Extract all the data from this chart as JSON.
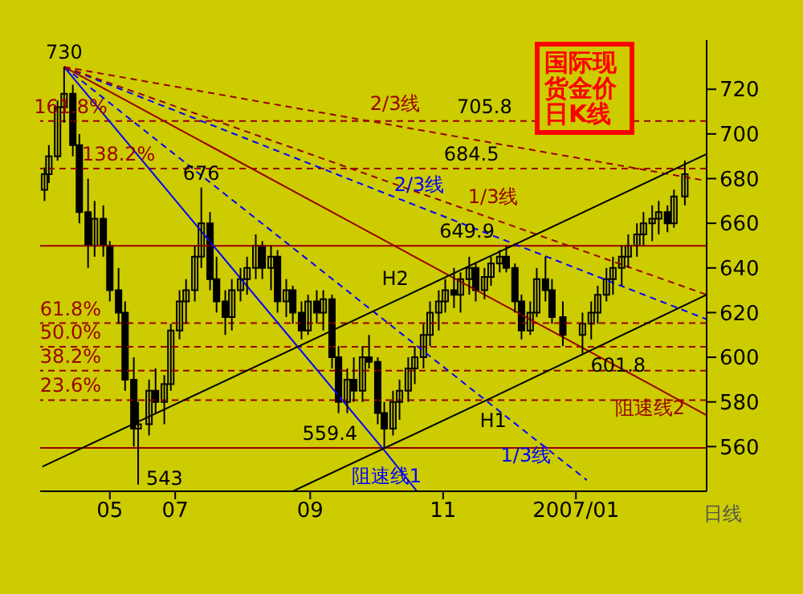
{
  "chart_data": {
    "type": "candlestick",
    "title": "国际现货金价日K线",
    "x": [
      "2006-05-02",
      "2006-05-04",
      "2006-05-08",
      "2006-05-11",
      "2006-05-15",
      "2006-05-18",
      "2006-05-22",
      "2006-05-25",
      "2006-05-29",
      "2006-06-01",
      "2006-06-05",
      "2006-06-08",
      "2006-06-12",
      "2006-06-14",
      "2006-06-19",
      "2006-06-22",
      "2006-06-26",
      "2006-06-29",
      "2006-07-03",
      "2006-07-06",
      "2006-07-10",
      "2006-07-13",
      "2006-07-17",
      "2006-07-20",
      "2006-07-24",
      "2006-07-27",
      "2006-07-31",
      "2006-08-03",
      "2006-08-07",
      "2006-08-10",
      "2006-08-14",
      "2006-08-17",
      "2006-08-21",
      "2006-08-24",
      "2006-08-28",
      "2006-08-31",
      "2006-09-04",
      "2006-09-07",
      "2006-09-11",
      "2006-09-14",
      "2006-09-18",
      "2006-09-21",
      "2006-09-25",
      "2006-09-28",
      "2006-10-02",
      "2006-10-05",
      "2006-10-09",
      "2006-10-12",
      "2006-10-16",
      "2006-10-19",
      "2006-10-23",
      "2006-10-26",
      "2006-10-30",
      "2006-11-02",
      "2006-11-06",
      "2006-11-09",
      "2006-11-13",
      "2006-11-16",
      "2006-11-20",
      "2006-11-23",
      "2006-11-27",
      "2006-11-30",
      "2006-12-04",
      "2006-12-07",
      "2006-12-11",
      "2006-12-14",
      "2006-12-18",
      "2006-12-21",
      "2006-12-26",
      "2007-01-04",
      "2007-01-08",
      "2007-01-11",
      "2007-01-15",
      "2007-01-18",
      "2007-01-22",
      "2007-01-25",
      "2007-01-29",
      "2007-02-01",
      "2007-02-05",
      "2007-02-08",
      "2007-02-12",
      "2007-02-15",
      "2007-02-20"
    ],
    "ohlc": [
      [
        675,
        685,
        670,
        682
      ],
      [
        682,
        695,
        678,
        690
      ],
      [
        690,
        715,
        688,
        712
      ],
      [
        712,
        730,
        705,
        718
      ],
      [
        718,
        722,
        690,
        695
      ],
      [
        695,
        700,
        660,
        665
      ],
      [
        665,
        680,
        640,
        650
      ],
      [
        650,
        670,
        645,
        662
      ],
      [
        662,
        668,
        645,
        650
      ],
      [
        650,
        652,
        625,
        630
      ],
      [
        630,
        640,
        615,
        620
      ],
      [
        620,
        625,
        585,
        590
      ],
      [
        590,
        600,
        560,
        568
      ],
      [
        568,
        580,
        543,
        570
      ],
      [
        570,
        590,
        565,
        585
      ],
      [
        585,
        595,
        575,
        580
      ],
      [
        580,
        592,
        570,
        588
      ],
      [
        588,
        615,
        585,
        612
      ],
      [
        612,
        630,
        608,
        625
      ],
      [
        625,
        635,
        615,
        630
      ],
      [
        630,
        650,
        625,
        645
      ],
      [
        645,
        676,
        640,
        660
      ],
      [
        660,
        665,
        630,
        635
      ],
      [
        635,
        645,
        620,
        625
      ],
      [
        625,
        630,
        610,
        618
      ],
      [
        618,
        635,
        612,
        630
      ],
      [
        630,
        640,
        625,
        635
      ],
      [
        635,
        645,
        628,
        640
      ],
      [
        640,
        655,
        635,
        650
      ],
      [
        650,
        652,
        635,
        640
      ],
      [
        640,
        650,
        630,
        645
      ],
      [
        645,
        648,
        620,
        625
      ],
      [
        625,
        635,
        618,
        630
      ],
      [
        630,
        632,
        615,
        620
      ],
      [
        620,
        625,
        608,
        612
      ],
      [
        612,
        628,
        610,
        625
      ],
      [
        625,
        630,
        615,
        620
      ],
      [
        620,
        630,
        612,
        626
      ],
      [
        626,
        628,
        595,
        600
      ],
      [
        600,
        605,
        575,
        580
      ],
      [
        580,
        595,
        575,
        590
      ],
      [
        590,
        600,
        580,
        585
      ],
      [
        585,
        605,
        580,
        600
      ],
      [
        600,
        610,
        595,
        598
      ],
      [
        598,
        600,
        570,
        575
      ],
      [
        575,
        580,
        559.4,
        568
      ],
      [
        568,
        585,
        565,
        580
      ],
      [
        580,
        590,
        572,
        585
      ],
      [
        585,
        600,
        580,
        595
      ],
      [
        595,
        605,
        588,
        600
      ],
      [
        600,
        615,
        595,
        610
      ],
      [
        610,
        625,
        605,
        620
      ],
      [
        620,
        630,
        612,
        625
      ],
      [
        625,
        635,
        620,
        630
      ],
      [
        630,
        640,
        622,
        628
      ],
      [
        628,
        638,
        620,
        635
      ],
      [
        635,
        645,
        628,
        640
      ],
      [
        640,
        642,
        625,
        630
      ],
      [
        630,
        640,
        626,
        636
      ],
      [
        636,
        645,
        632,
        642
      ],
      [
        642,
        648,
        638,
        645
      ],
      [
        645,
        649.9,
        638,
        640
      ],
      [
        640,
        642,
        620,
        625
      ],
      [
        625,
        628,
        608,
        612
      ],
      [
        612,
        625,
        610,
        620
      ],
      [
        620,
        640,
        618,
        635
      ],
      [
        635,
        645,
        625,
        630
      ],
      [
        630,
        635,
        615,
        618
      ],
      [
        618,
        625,
        605,
        610
      ],
      [
        610,
        620,
        601.8,
        615
      ],
      [
        615,
        625,
        608,
        620
      ],
      [
        620,
        632,
        615,
        628
      ],
      [
        628,
        640,
        625,
        635
      ],
      [
        635,
        645,
        628,
        640
      ],
      [
        640,
        650,
        632,
        645
      ],
      [
        645,
        655,
        640,
        650
      ],
      [
        650,
        660,
        645,
        655
      ],
      [
        655,
        665,
        650,
        660
      ],
      [
        660,
        668,
        652,
        662
      ],
      [
        662,
        670,
        655,
        665
      ],
      [
        665,
        668,
        656,
        660
      ],
      [
        660,
        675,
        658,
        672
      ],
      [
        672,
        688,
        668,
        682
      ]
    ],
    "color": "#000000",
    "series": [
      {
        "type": "line",
        "name": "阻速线1",
        "color": "#0000ff",
        "line_style": "solid",
        "x": [
          "2006-05-11",
          "2006-10-06",
          "2006-10-20"
        ],
        "values": [
          730,
          557.1,
          540
        ]
      },
      {
        "type": "line",
        "name": "1/3线",
        "color": "#0000ff",
        "line_style": "dashed",
        "x": [
          "2006-05-11",
          "2006-12-09",
          "2007-01-06"
        ],
        "values": [
          730,
          566.5,
          545
        ]
      },
      {
        "type": "line",
        "name": "2/3线",
        "color": "#0000ff",
        "line_style": "dashed",
        "x": [
          "2006-05-11",
          "2006-10-21",
          "2007-03-02"
        ],
        "values": [
          730,
          667.4,
          617
        ]
      },
      {
        "type": "line",
        "name": "阻速线2",
        "color": "#990000",
        "line_style": "solid",
        "x": [
          "2006-05-11",
          "2007-02-04",
          "2007-03-02"
        ],
        "values": [
          730,
          587.9,
          574
        ]
      },
      {
        "type": "line",
        "name": "1/3线",
        "color": "#990000",
        "line_style": "dashed",
        "x": [
          "2006-05-11",
          "2006-11-24",
          "2007-03-02"
        ],
        "values": [
          730,
          661.9,
          628
        ]
      },
      {
        "type": "line",
        "name": "2/3线",
        "color": "#990000",
        "line_style": "dashed",
        "x": [
          "2006-05-11",
          "2006-10-10",
          "2007-03-02"
        ],
        "values": [
          730,
          703.7,
          679
        ]
      },
      {
        "type": "line",
        "name": "H2",
        "color": "#000000",
        "line_style": "solid",
        "x": [
          "2006-05-01",
          "2006-10-10",
          "2007-03-02"
        ],
        "values": [
          551,
          625.2,
          691
        ]
      },
      {
        "type": "line",
        "name": "H1",
        "color": "#000000",
        "line_style": "solid",
        "x": [
          "2006-08-24",
          "2006-11-24",
          "2007-03-02"
        ],
        "values": [
          540,
          582.2,
          628
        ]
      }
    ],
    "ref_lines": [
      {
        "axis": "y",
        "value": 705.8,
        "color": "#990000",
        "line_style": "dashed"
      },
      {
        "axis": "y",
        "value": 684.5,
        "color": "#990000",
        "line_style": "dashed"
      },
      {
        "axis": "y",
        "value": 649.9,
        "color": "#990000",
        "line_style": "solid"
      },
      {
        "axis": "y",
        "value": 615.3,
        "color": "#990000",
        "line_style": "dashed"
      },
      {
        "axis": "y",
        "value": 604.7,
        "color": "#990000",
        "line_style": "dashed"
      },
      {
        "axis": "y",
        "value": 594,
        "color": "#990000",
        "line_style": "dashed"
      },
      {
        "axis": "y",
        "value": 580.8,
        "color": "#990000",
        "line_style": "dashed"
      },
      {
        "axis": "y",
        "value": 559.4,
        "color": "#990000",
        "line_style": "solid"
      }
    ],
    "annotations": [
      {
        "text": "730",
        "x": "2006-05-11",
        "y": 730
      },
      {
        "text": "543",
        "x": "2006-06-14",
        "y": 543
      },
      {
        "text": "676",
        "x": "2006-07-13",
        "y": 676
      },
      {
        "text": "601.8",
        "x": "2007-01-04",
        "y": 601.8
      },
      {
        "text": "705.8",
        "x": "2006-11-20",
        "y": 705.8
      },
      {
        "text": "161.8%",
        "x": "2006-05-14",
        "y": 705.8
      },
      {
        "text": "684.5",
        "x": "2006-11-14",
        "y": 684.5
      },
      {
        "text": "138.2%",
        "x": "2006-06-05",
        "y": 684.5
      },
      {
        "text": "649.9",
        "x": "2006-11-12",
        "y": 649.9
      },
      {
        "text": "61.8%",
        "x": "2006-05-14",
        "y": 615.3
      },
      {
        "text": "50.0%",
        "x": "2006-05-14",
        "y": 604.7
      },
      {
        "text": "38.2%",
        "x": "2006-05-14",
        "y": 594
      },
      {
        "text": "23.6%",
        "x": "2006-05-14",
        "y": 580.8
      },
      {
        "text": "559.4",
        "x": "2006-09-10",
        "y": 559.4
      },
      "日线"
    ],
    "xlim": [
      "2006-04-30",
      "2007-03-02"
    ],
    "xticks": [
      {
        "value": "2006-06-01",
        "label": "05"
      },
      {
        "value": "2006-07-01",
        "label": "07"
      },
      {
        "value": "2006-09-01",
        "label": "09"
      },
      {
        "value": "2006-11-01",
        "label": "11"
      },
      {
        "value": "2007-01-01",
        "label": "2007/01"
      }
    ],
    "ylim": [
      540,
      742
    ],
    "yticks": [
      560,
      580,
      600,
      620,
      640,
      660,
      680,
      700,
      720
    ]
  }
}
